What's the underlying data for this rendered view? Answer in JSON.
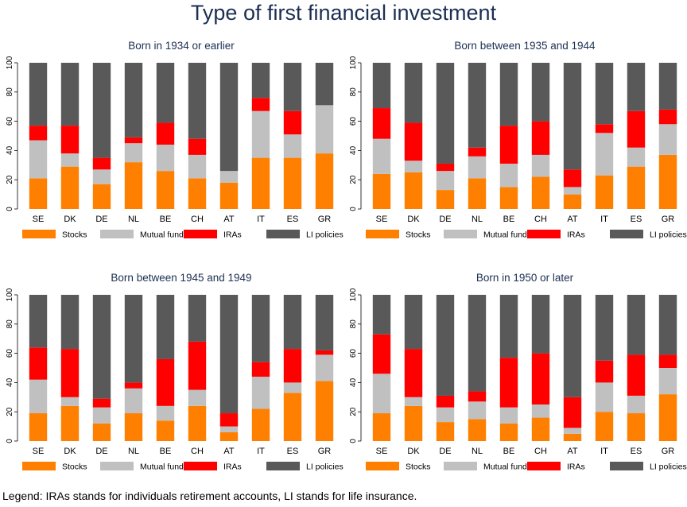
{
  "title": "Type of first financial investment",
  "footnote": "Legend: IRAs stands for individuals retirement accounts, LI stands for life insurance.",
  "colors": {
    "stocks": "#ff8000",
    "mutual_funds": "#c0c0c0",
    "iras": "#ff0000",
    "li_policies": "#595959",
    "subtitle": "#1c2f52"
  },
  "chart_data": [
    {
      "type": "bar",
      "stacked": true,
      "title": "Born in 1934 or earlier",
      "categories": [
        "SE",
        "DK",
        "DE",
        "NL",
        "BE",
        "CH",
        "AT",
        "IT",
        "ES",
        "GR"
      ],
      "ylim": [
        0,
        100
      ],
      "yticks": [
        "0",
        "20",
        "40",
        "60",
        "80",
        "100"
      ],
      "series": [
        {
          "name": "Stocks",
          "values": [
            21,
            29,
            17,
            32,
            26,
            21,
            18,
            35,
            35,
            38
          ]
        },
        {
          "name": "Mutual funds",
          "values": [
            26,
            9,
            10,
            13,
            18,
            16,
            8,
            32,
            16,
            33
          ]
        },
        {
          "name": "IRAs",
          "values": [
            10,
            19,
            8,
            4,
            15,
            11,
            0,
            9,
            16,
            0
          ]
        },
        {
          "name": "LI policies",
          "values": [
            43,
            43,
            65,
            51,
            41,
            52,
            74,
            24,
            33,
            29
          ]
        }
      ]
    },
    {
      "type": "bar",
      "stacked": true,
      "title": "Born between 1935 and 1944",
      "categories": [
        "SE",
        "DK",
        "DE",
        "NL",
        "BE",
        "CH",
        "AT",
        "IT",
        "ES",
        "GR"
      ],
      "ylim": [
        0,
        100
      ],
      "yticks": [
        "0",
        "20",
        "40",
        "60",
        "80",
        "100"
      ],
      "series": [
        {
          "name": "Stocks",
          "values": [
            24,
            25,
            13,
            21,
            15,
            22,
            10,
            23,
            29,
            37
          ]
        },
        {
          "name": "Mutual funds",
          "values": [
            24,
            8,
            13,
            15,
            16,
            15,
            5,
            29,
            13,
            21
          ]
        },
        {
          "name": "IRAs",
          "values": [
            21,
            26,
            5,
            6,
            26,
            23,
            12,
            6,
            25,
            10
          ]
        },
        {
          "name": "LI policies",
          "values": [
            31,
            41,
            69,
            58,
            43,
            40,
            73,
            42,
            33,
            32
          ]
        }
      ]
    },
    {
      "type": "bar",
      "stacked": true,
      "title": "Born between 1945 and 1949",
      "categories": [
        "SE",
        "DK",
        "DE",
        "NL",
        "BE",
        "CH",
        "AT",
        "IT",
        "ES",
        "GR"
      ],
      "ylim": [
        0,
        100
      ],
      "yticks": [
        "0",
        "20",
        "40",
        "60",
        "80",
        "100"
      ],
      "series": [
        {
          "name": "Stocks",
          "values": [
            19,
            24,
            12,
            19,
            14,
            24,
            6,
            22,
            33,
            41
          ]
        },
        {
          "name": "Mutual funds",
          "values": [
            23,
            6,
            11,
            17,
            10,
            11,
            4,
            22,
            7,
            18
          ]
        },
        {
          "name": "IRAs",
          "values": [
            22,
            33,
            6,
            4,
            32,
            33,
            9,
            10,
            23,
            3
          ]
        },
        {
          "name": "LI policies",
          "values": [
            36,
            37,
            71,
            60,
            44,
            32,
            81,
            46,
            37,
            38
          ]
        }
      ]
    },
    {
      "type": "bar",
      "stacked": true,
      "title": "Born in 1950 or later",
      "categories": [
        "SE",
        "DK",
        "DE",
        "NL",
        "BE",
        "CH",
        "AT",
        "IT",
        "ES",
        "GR"
      ],
      "ylim": [
        0,
        100
      ],
      "yticks": [
        "0",
        "20",
        "40",
        "60",
        "80",
        "100"
      ],
      "series": [
        {
          "name": "Stocks",
          "values": [
            19,
            24,
            13,
            15,
            12,
            16,
            5,
            20,
            19,
            32
          ]
        },
        {
          "name": "Mutual funds",
          "values": [
            27,
            6,
            10,
            12,
            11,
            9,
            4,
            20,
            12,
            18
          ]
        },
        {
          "name": "IRAs",
          "values": [
            27,
            33,
            8,
            7,
            34,
            35,
            21,
            15,
            28,
            9
          ]
        },
        {
          "name": "LI policies",
          "values": [
            27,
            37,
            69,
            66,
            43,
            40,
            70,
            45,
            41,
            41
          ]
        }
      ]
    }
  ]
}
